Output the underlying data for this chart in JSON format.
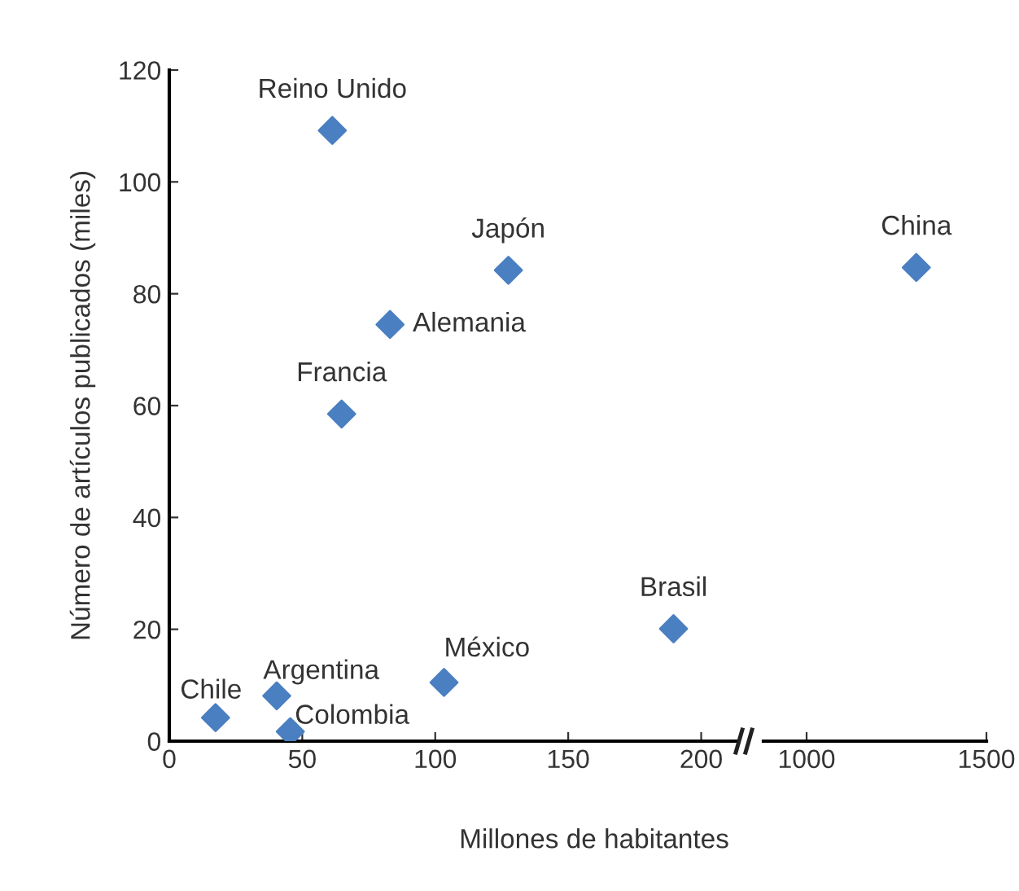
{
  "chart_data": [
    {
      "type": "scatter",
      "xlabel": "Millones de habitantes",
      "ylabel": "Número de artículos publicados (miles)",
      "marker": "diamond",
      "grid": false,
      "xlim": [
        0,
        213
      ],
      "xticks": [
        0,
        50,
        100,
        150,
        200
      ],
      "ylim": [
        0,
        120
      ],
      "yticks": [
        0,
        20,
        40,
        60,
        80,
        100,
        120
      ],
      "series": [
        {
          "color": "#4a7fc1",
          "x": [
            61.3,
            127.5,
            83,
            64.8,
            189.6,
            103.3,
            40.4,
            17.4,
            45.5
          ],
          "values": [
            109.2,
            84.2,
            74.5,
            58.5,
            20.1,
            10.5,
            8.1,
            4.2,
            1.7
          ]
        }
      ],
      "annotations": [
        {
          "text": "Reino Unido",
          "x": 61.3,
          "y": 109.2
        },
        {
          "text": "Japón",
          "x": 127.5,
          "y": 84.2
        },
        {
          "text": "Alemania",
          "x": 83,
          "y": 74.5
        },
        {
          "text": "Francia",
          "x": 64.8,
          "y": 58.5
        },
        {
          "text": "Brasil",
          "x": 189.6,
          "y": 20.1
        },
        {
          "text": "México",
          "x": 103.3,
          "y": 10.5
        },
        {
          "text": "Argentina",
          "x": 40.4,
          "y": 8.1
        },
        {
          "text": "Chile",
          "x": 17.4,
          "y": 4.2
        },
        {
          "text": "Colombia",
          "x": 45.5,
          "y": 1.7
        }
      ]
    },
    {
      "type": "scatter",
      "marker": "diamond",
      "grid": false,
      "tick_labels": "x",
      "xlim": [
        880,
        1500
      ],
      "xticks": [
        1000,
        1500
      ],
      "ylim": [
        0,
        120
      ],
      "series": [
        {
          "color": "#4a7fc1",
          "x": [
            1305
          ],
          "values": [
            84.7
          ]
        }
      ],
      "annotations": [
        {
          "text": "China",
          "x": 1305,
          "y": 84.7
        }
      ]
    }
  ]
}
